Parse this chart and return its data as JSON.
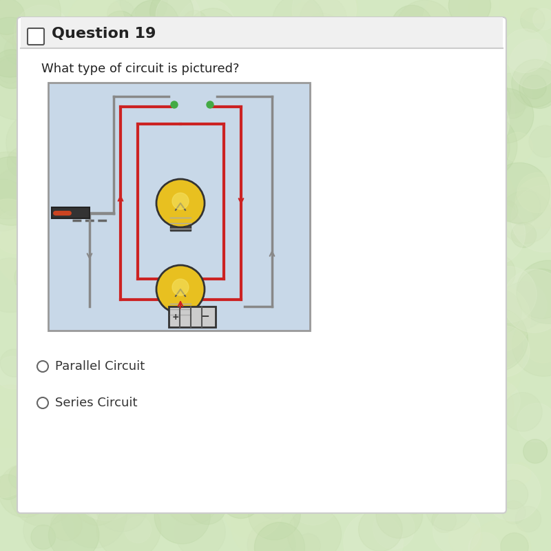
{
  "bg_color": "#d4e8c2",
  "card_color": "#f0f0f0",
  "card_border_color": "#cccccc",
  "question_header_bg": "#f5f5f5",
  "question_header_text": "Question 19",
  "question_text": "What type of circuit is pictured?",
  "circuit_image_bg": "#c8d8e8",
  "option1_text": "Parallel Circuit",
  "option2_text": "Series Circuit",
  "wire_color": "#cc2222",
  "wire_color2": "#888888",
  "battery_color": "#444444",
  "bulb_color": "#e8c020",
  "switch_color": "#333333",
  "title_fontsize": 16,
  "question_fontsize": 13,
  "option_fontsize": 13
}
